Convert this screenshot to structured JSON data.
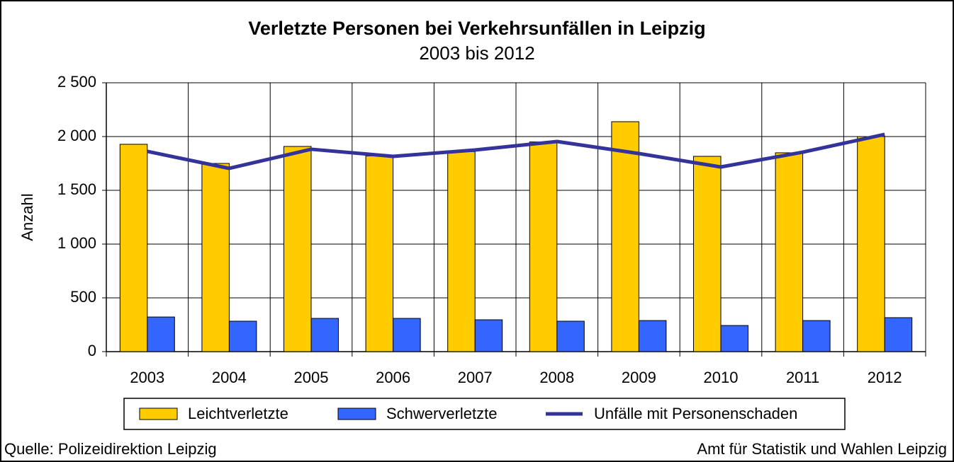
{
  "chart_data": {
    "type": "bar",
    "title": "Verletzte Personen bei Verkehrsunfällen in Leipzig",
    "subtitle": "2003 bis 2012",
    "y_label": "Anzahl",
    "categories": [
      "2003",
      "2004",
      "2005",
      "2006",
      "2007",
      "2008",
      "2009",
      "2010",
      "2011",
      "2012"
    ],
    "series": [
      {
        "name": "Leichtverletzte",
        "type": "bar",
        "color": "#ffcc00",
        "values": [
          1928,
          1750,
          1908,
          1820,
          1860,
          1950,
          2138,
          1816,
          1849,
          2000
        ]
      },
      {
        "name": "Schwerverletzte",
        "type": "bar",
        "color": "#3366ff",
        "values": [
          322,
          283,
          309,
          309,
          296,
          283,
          289,
          243,
          289,
          316
        ]
      },
      {
        "name": "Unfälle mit Personenschaden",
        "type": "line",
        "color": "#333399",
        "values": [
          1862,
          1704,
          1882,
          1816,
          1875,
          1954,
          1842,
          1717,
          1855,
          2020
        ]
      }
    ],
    "ylim": [
      0,
      2500
    ],
    "yticks": [
      0,
      500,
      {
        "value": 1000,
        "label": "1 000"
      },
      {
        "value": 1500,
        "label": "1 500"
      },
      {
        "value": 2000,
        "label": "2 000"
      },
      {
        "value": 2500,
        "label": "2 500"
      }
    ],
    "grid": true,
    "legend": "bottom",
    "source": "Quelle: Polizeidirektion Leipzig",
    "publisher": "Amt für Statistik und Wahlen Leipzig"
  }
}
